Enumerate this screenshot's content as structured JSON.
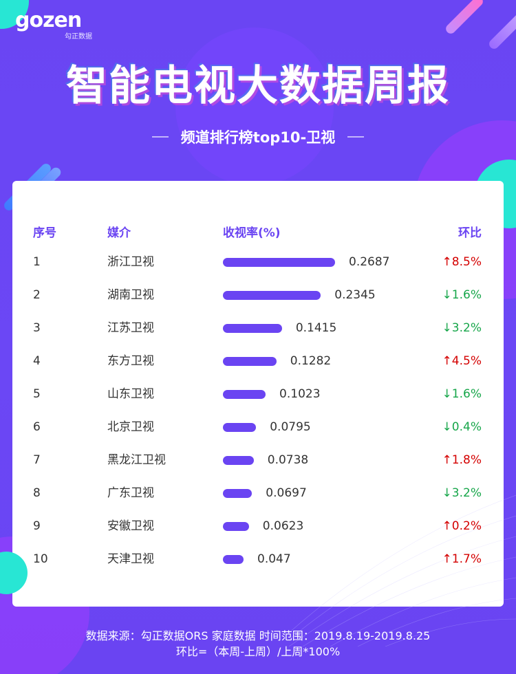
{
  "brand": {
    "logo_text": "gozen",
    "logo_sub": "勾正数据"
  },
  "header": {
    "title": "智能电视大数据周报",
    "subtitle": "频道排行榜top10-卫视"
  },
  "table": {
    "headers": {
      "rank": "序号",
      "media": "媒介",
      "rating": "收视率(%)",
      "change": "环比"
    },
    "rows": [
      {
        "rank": "1",
        "media": "浙江卫视",
        "rating": "0.2687",
        "change": "8.5%",
        "direction": "up"
      },
      {
        "rank": "2",
        "media": "湖南卫视",
        "rating": "0.2345",
        "change": "1.6%",
        "direction": "down"
      },
      {
        "rank": "3",
        "media": "江苏卫视",
        "rating": "0.1415",
        "change": "3.2%",
        "direction": "down"
      },
      {
        "rank": "4",
        "media": "东方卫视",
        "rating": "0.1282",
        "change": "4.5%",
        "direction": "up"
      },
      {
        "rank": "5",
        "media": "山东卫视",
        "rating": "0.1023",
        "change": "1.6%",
        "direction": "down"
      },
      {
        "rank": "6",
        "media": "北京卫视",
        "rating": "0.0795",
        "change": "0.4%",
        "direction": "down"
      },
      {
        "rank": "7",
        "media": "黑龙江卫视",
        "rating": "0.0738",
        "change": "1.8%",
        "direction": "up"
      },
      {
        "rank": "8",
        "media": "广东卫视",
        "rating": "0.0697",
        "change": "3.2%",
        "direction": "down"
      },
      {
        "rank": "9",
        "media": "安徽卫视",
        "rating": "0.0623",
        "change": "0.2%",
        "direction": "up"
      },
      {
        "rank": "10",
        "media": "天津卫视",
        "rating": "0.047",
        "change": "1.7%",
        "direction": "up"
      }
    ]
  },
  "footer": {
    "line1": "数据来源：勾正数据ORS 家庭数据  时间范围：2019.8.19-2019.8.25",
    "line2": "环比=（本周-上周）/上周*100%"
  },
  "colors": {
    "accent": "#6a44f2",
    "up": "#d40000",
    "down": "#17a64a",
    "highlight": "#28e6d4"
  },
  "icons": {
    "up": "arrow-up-icon",
    "down": "arrow-down-icon"
  }
}
